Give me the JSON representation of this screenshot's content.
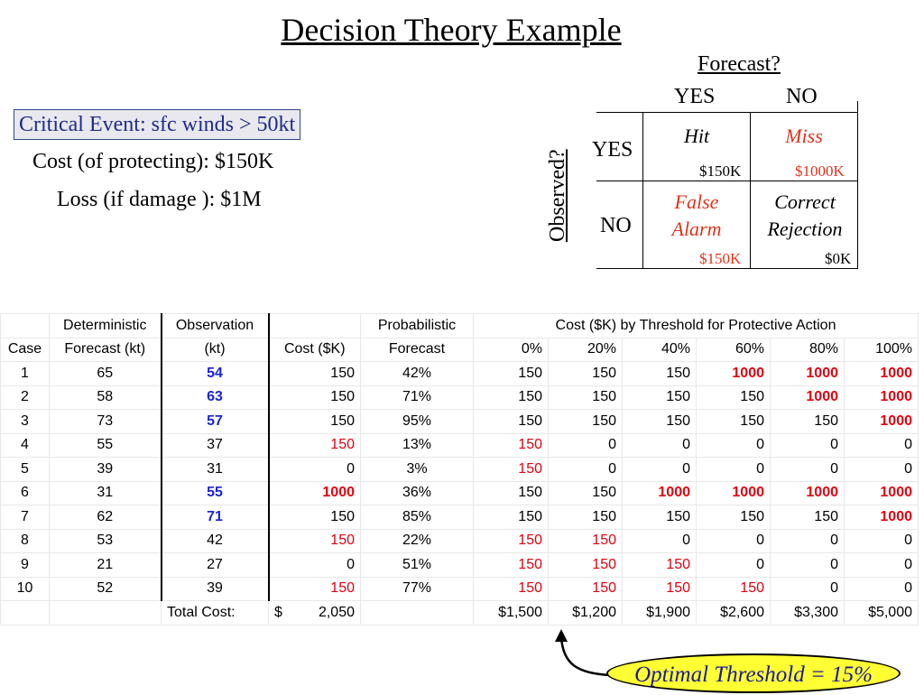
{
  "title": "Decision Theory Example",
  "event": {
    "critical": "Critical Event: sfc winds > 50kt",
    "cost": "Cost (of protecting):   $150K",
    "loss": "Loss (if damage ):  $1M"
  },
  "matrix": {
    "forecast_label": "Forecast?",
    "observed_label": "Observed?",
    "fc_yes": "YES",
    "fc_no": "NO",
    "obs_yes": "YES",
    "obs_no": "NO",
    "hit": "Hit",
    "miss": "Miss",
    "false1": "False",
    "false2": "Alarm",
    "correct1": "Correct",
    "correct2": "Rejection",
    "hit_cost": "$150K",
    "miss_cost": "$1000K",
    "fa_cost": "$150K",
    "cr_cost": "$0K"
  },
  "table": {
    "header1": [
      "",
      "Deterministic",
      "Observation",
      "",
      "Probabilistic",
      "Cost ($K) by Threshold for Protective Action"
    ],
    "header2": [
      "Case",
      "Forecast (kt)",
      "(kt)",
      "Cost ($K)",
      "Forecast",
      "0%",
      "20%",
      "40%",
      "60%",
      "80%",
      "100%"
    ],
    "rows": [
      {
        "case": "1",
        "det": "65",
        "obs": "54",
        "cost": "150",
        "prob": "42%",
        "t": [
          "150",
          "150",
          "150",
          "1000",
          "1000",
          "1000"
        ]
      },
      {
        "case": "2",
        "det": "58",
        "obs": "63",
        "cost": "150",
        "prob": "71%",
        "t": [
          "150",
          "150",
          "150",
          "150",
          "1000",
          "1000"
        ]
      },
      {
        "case": "3",
        "det": "73",
        "obs": "57",
        "cost": "150",
        "prob": "95%",
        "t": [
          "150",
          "150",
          "150",
          "150",
          "150",
          "1000"
        ]
      },
      {
        "case": "4",
        "det": "55",
        "obs": "37",
        "cost": "150",
        "prob": "13%",
        "t": [
          "150",
          "0",
          "0",
          "0",
          "0",
          "0"
        ]
      },
      {
        "case": "5",
        "det": "39",
        "obs": "31",
        "cost": "0",
        "prob": "3%",
        "t": [
          "150",
          "0",
          "0",
          "0",
          "0",
          "0"
        ]
      },
      {
        "case": "6",
        "det": "31",
        "obs": "55",
        "cost": "1000",
        "prob": "36%",
        "t": [
          "150",
          "150",
          "1000",
          "1000",
          "1000",
          "1000"
        ]
      },
      {
        "case": "7",
        "det": "62",
        "obs": "71",
        "cost": "150",
        "prob": "85%",
        "t": [
          "150",
          "150",
          "150",
          "150",
          "150",
          "1000"
        ]
      },
      {
        "case": "8",
        "det": "53",
        "obs": "42",
        "cost": "150",
        "prob": "22%",
        "t": [
          "150",
          "150",
          "0",
          "0",
          "0",
          "0"
        ]
      },
      {
        "case": "9",
        "det": "21",
        "obs": "27",
        "cost": "0",
        "prob": "51%",
        "t": [
          "150",
          "150",
          "150",
          "0",
          "0",
          "0"
        ]
      },
      {
        "case": "10",
        "det": "52",
        "obs": "39",
        "cost": "150",
        "prob": "77%",
        "t": [
          "150",
          "150",
          "150",
          "150",
          "0",
          "0"
        ]
      }
    ],
    "total_label": "Total Cost:",
    "total_dollar": "$",
    "total_value": "2,050",
    "totals": [
      "$1,500",
      "$1,200",
      "$1,900",
      "$2,600",
      "$3,300",
      "$5,000"
    ],
    "colors": {
      "observed_event": "#1a24d0",
      "false_alarm": "#e3000f",
      "miss": "#e3000f"
    }
  },
  "callout": "Optimal Threshold = 15%"
}
